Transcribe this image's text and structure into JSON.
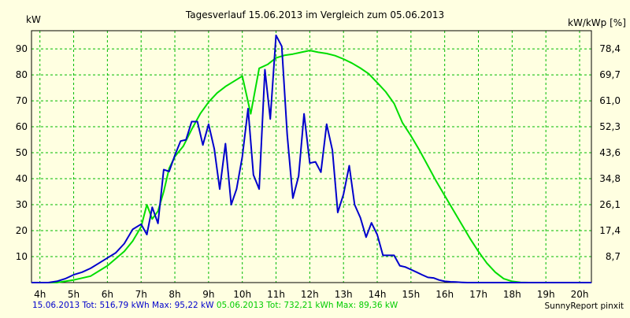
{
  "chart_data": {
    "type": "line",
    "title": "Tagesverlauf 15.06.2013 im Vergleich zum 05.06.2013",
    "ylabel_left": "kW",
    "ylabel_right": "kW/kWp [%]",
    "x_ticks": [
      "4h",
      "5h",
      "6h",
      "7h",
      "8h",
      "9h",
      "10h",
      "11h",
      "12h",
      "13h",
      "14h",
      "15h",
      "16h",
      "17h",
      "18h",
      "19h",
      "20h"
    ],
    "xlim": [
      3.75,
      20.35
    ],
    "ylim": [
      0,
      97
    ],
    "y_ticks": [
      10,
      20,
      30,
      40,
      50,
      60,
      70,
      80,
      90
    ],
    "y_right_ticks": [
      "8,7",
      "17,4",
      "26,1",
      "34,8",
      "43,6",
      "52,3",
      "61,0",
      "69,7",
      "78,4"
    ],
    "grid": true,
    "series": [
      {
        "name": "15.06.2013",
        "color": "#0000cc",
        "x": [
          3.75,
          4.25,
          4.5,
          4.75,
          5.0,
          5.25,
          5.5,
          5.75,
          6.0,
          6.25,
          6.5,
          6.75,
          7.0,
          7.17,
          7.33,
          7.5,
          7.67,
          7.83,
          8.0,
          8.17,
          8.33,
          8.5,
          8.67,
          8.83,
          9.0,
          9.17,
          9.33,
          9.5,
          9.67,
          9.83,
          10.0,
          10.17,
          10.33,
          10.5,
          10.67,
          10.83,
          11.0,
          11.17,
          11.33,
          11.5,
          11.67,
          11.83,
          12.0,
          12.17,
          12.33,
          12.5,
          12.67,
          12.83,
          13.0,
          13.17,
          13.33,
          13.5,
          13.67,
          13.83,
          14.0,
          14.17,
          14.33,
          14.5,
          14.67,
          14.83,
          15.0,
          15.17,
          15.33,
          15.5,
          15.67,
          15.83,
          16.0,
          16.17,
          16.33,
          16.5,
          16.67,
          16.83,
          17.0,
          17.17,
          17.33,
          17.5,
          17.67,
          17.83,
          18.0,
          18.17,
          18.33,
          18.5,
          18.67,
          18.83,
          19.0,
          19.25,
          19.5,
          19.75,
          20.0,
          20.35
        ],
        "values": [
          0,
          0,
          0.5,
          1.5,
          3,
          4,
          5.5,
          7.5,
          9.5,
          11.5,
          15,
          20.5,
          22.5,
          18.5,
          29,
          22.8,
          43.5,
          42.8,
          49,
          54.5,
          55,
          62,
          62,
          53,
          61,
          51.5,
          36,
          53.5,
          30,
          36,
          48.5,
          67,
          41.5,
          36,
          82,
          63,
          95.2,
          91,
          57,
          32.5,
          41,
          65,
          46,
          46.5,
          42.5,
          61,
          51,
          27,
          34,
          45,
          30,
          25,
          17.5,
          23,
          18.5,
          10.5,
          10.5,
          10.5,
          6.5,
          6,
          5,
          4,
          3,
          2,
          1.8,
          1,
          0.5,
          0.3,
          0.2,
          0.1,
          0,
          0,
          0,
          0,
          0,
          0,
          0,
          0,
          0,
          0,
          0,
          0,
          0,
          0,
          0,
          0,
          0,
          0,
          0,
          0
        ],
        "footer": "15.06.2013 Tot: 516,79 kWh Max: 95,22 kW"
      },
      {
        "name": "05.06.2013",
        "color": "#00dd00",
        "x": [
          3.75,
          4.5,
          5.0,
          5.5,
          6.0,
          6.5,
          6.75,
          7.0,
          7.17,
          7.33,
          7.5,
          7.67,
          7.83,
          8.0,
          8.25,
          8.5,
          8.75,
          9.0,
          9.25,
          9.5,
          9.75,
          10.0,
          10.25,
          10.5,
          10.75,
          11.0,
          11.25,
          11.5,
          11.75,
          12.0,
          12.25,
          12.5,
          12.75,
          13.0,
          13.25,
          13.5,
          13.75,
          14.0,
          14.25,
          14.5,
          14.75,
          15.0,
          15.25,
          15.5,
          15.75,
          16.0,
          16.25,
          16.5,
          16.75,
          17.0,
          17.25,
          17.5,
          17.75,
          18.0,
          18.25,
          18.5,
          18.75,
          19.0,
          19.25,
          19.5,
          19.75,
          20.0,
          20.35
        ],
        "values": [
          0,
          0,
          1,
          2.5,
          6.5,
          12,
          16,
          21.5,
          30,
          24.5,
          27.5,
          35,
          44,
          48.5,
          52.5,
          59,
          65,
          69.5,
          73,
          75.5,
          77.5,
          79.5,
          65,
          82.5,
          84,
          86.5,
          87.5,
          88,
          88.7,
          89.4,
          88.7,
          88.2,
          87.4,
          86.1,
          84.5,
          82.6,
          80.4,
          77,
          73.5,
          69,
          61.5,
          56.5,
          51,
          45,
          39,
          33.5,
          28,
          22.5,
          17,
          12,
          7.5,
          4,
          1.5,
          0.5,
          0.1,
          0,
          0,
          0,
          0,
          0,
          0,
          0,
          0
        ],
        "footer": "05.06.2013 Tot: 732,21 kWh Max: 89,36 kW"
      }
    ]
  },
  "credit": "SunnyReport pinxit"
}
